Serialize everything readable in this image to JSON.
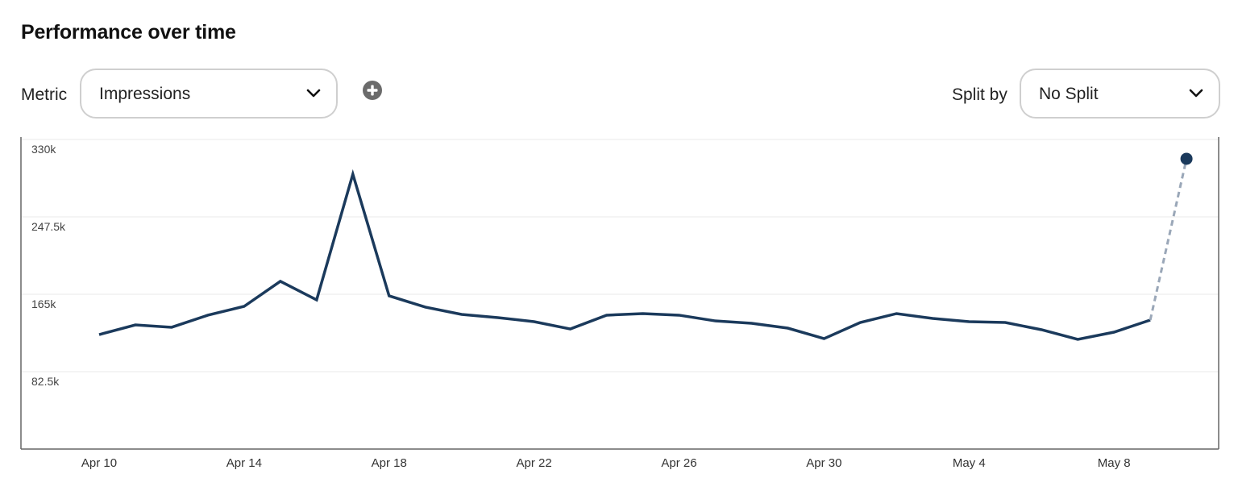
{
  "header": {
    "title": "Performance over time"
  },
  "controls": {
    "metric_label": "Metric",
    "metric_value": "Impressions",
    "add_metric_icon": "plus-circle-icon",
    "split_label": "Split by",
    "split_value": "No Split"
  },
  "colors": {
    "line": "#1b3a5c",
    "projection": "#9aa7b8",
    "grid": "#eeeeee",
    "axis": "#666666"
  },
  "chart_data": {
    "type": "line",
    "title": "Performance over time",
    "xlabel": "",
    "ylabel": "Impressions",
    "ylim": [
      0,
      330000
    ],
    "yticks": [
      "330k",
      "247.5k",
      "165k",
      "82.5k"
    ],
    "ytick_values": [
      330000,
      247500,
      165000,
      82500
    ],
    "xticks": [
      "Apr 10",
      "Apr 14",
      "Apr 18",
      "Apr 22",
      "Apr 26",
      "Apr 30",
      "May 4",
      "May 8"
    ],
    "grid": true,
    "legend": "none",
    "x": [
      "Apr 10",
      "Apr 11",
      "Apr 12",
      "Apr 13",
      "Apr 14",
      "Apr 15",
      "Apr 16",
      "Apr 17",
      "Apr 18",
      "Apr 19",
      "Apr 20",
      "Apr 21",
      "Apr 22",
      "Apr 23",
      "Apr 24",
      "Apr 25",
      "Apr 26",
      "Apr 27",
      "Apr 28",
      "Apr 29",
      "Apr 30",
      "May 1",
      "May 2",
      "May 3",
      "May 4",
      "May 5",
      "May 6",
      "May 7",
      "May 8",
      "May 9",
      "May 10"
    ],
    "series": [
      {
        "name": "Impressions",
        "style": "solid",
        "values": [
          122000,
          132300,
          129800,
          142700,
          152100,
          178800,
          159000,
          293000,
          163300,
          151300,
          143500,
          140100,
          135800,
          128000,
          142700,
          144400,
          142700,
          136600,
          134100,
          128900,
          117700,
          134900,
          144400,
          139200,
          135800,
          134900,
          127200,
          116900,
          124600,
          137500,
          null
        ]
      },
      {
        "name": "Impressions (in progress)",
        "style": "dashed",
        "values": [
          null,
          null,
          null,
          null,
          null,
          null,
          null,
          null,
          null,
          null,
          null,
          null,
          null,
          null,
          null,
          null,
          null,
          null,
          null,
          null,
          null,
          null,
          null,
          null,
          null,
          null,
          null,
          null,
          null,
          137500,
          309400
        ]
      }
    ]
  }
}
